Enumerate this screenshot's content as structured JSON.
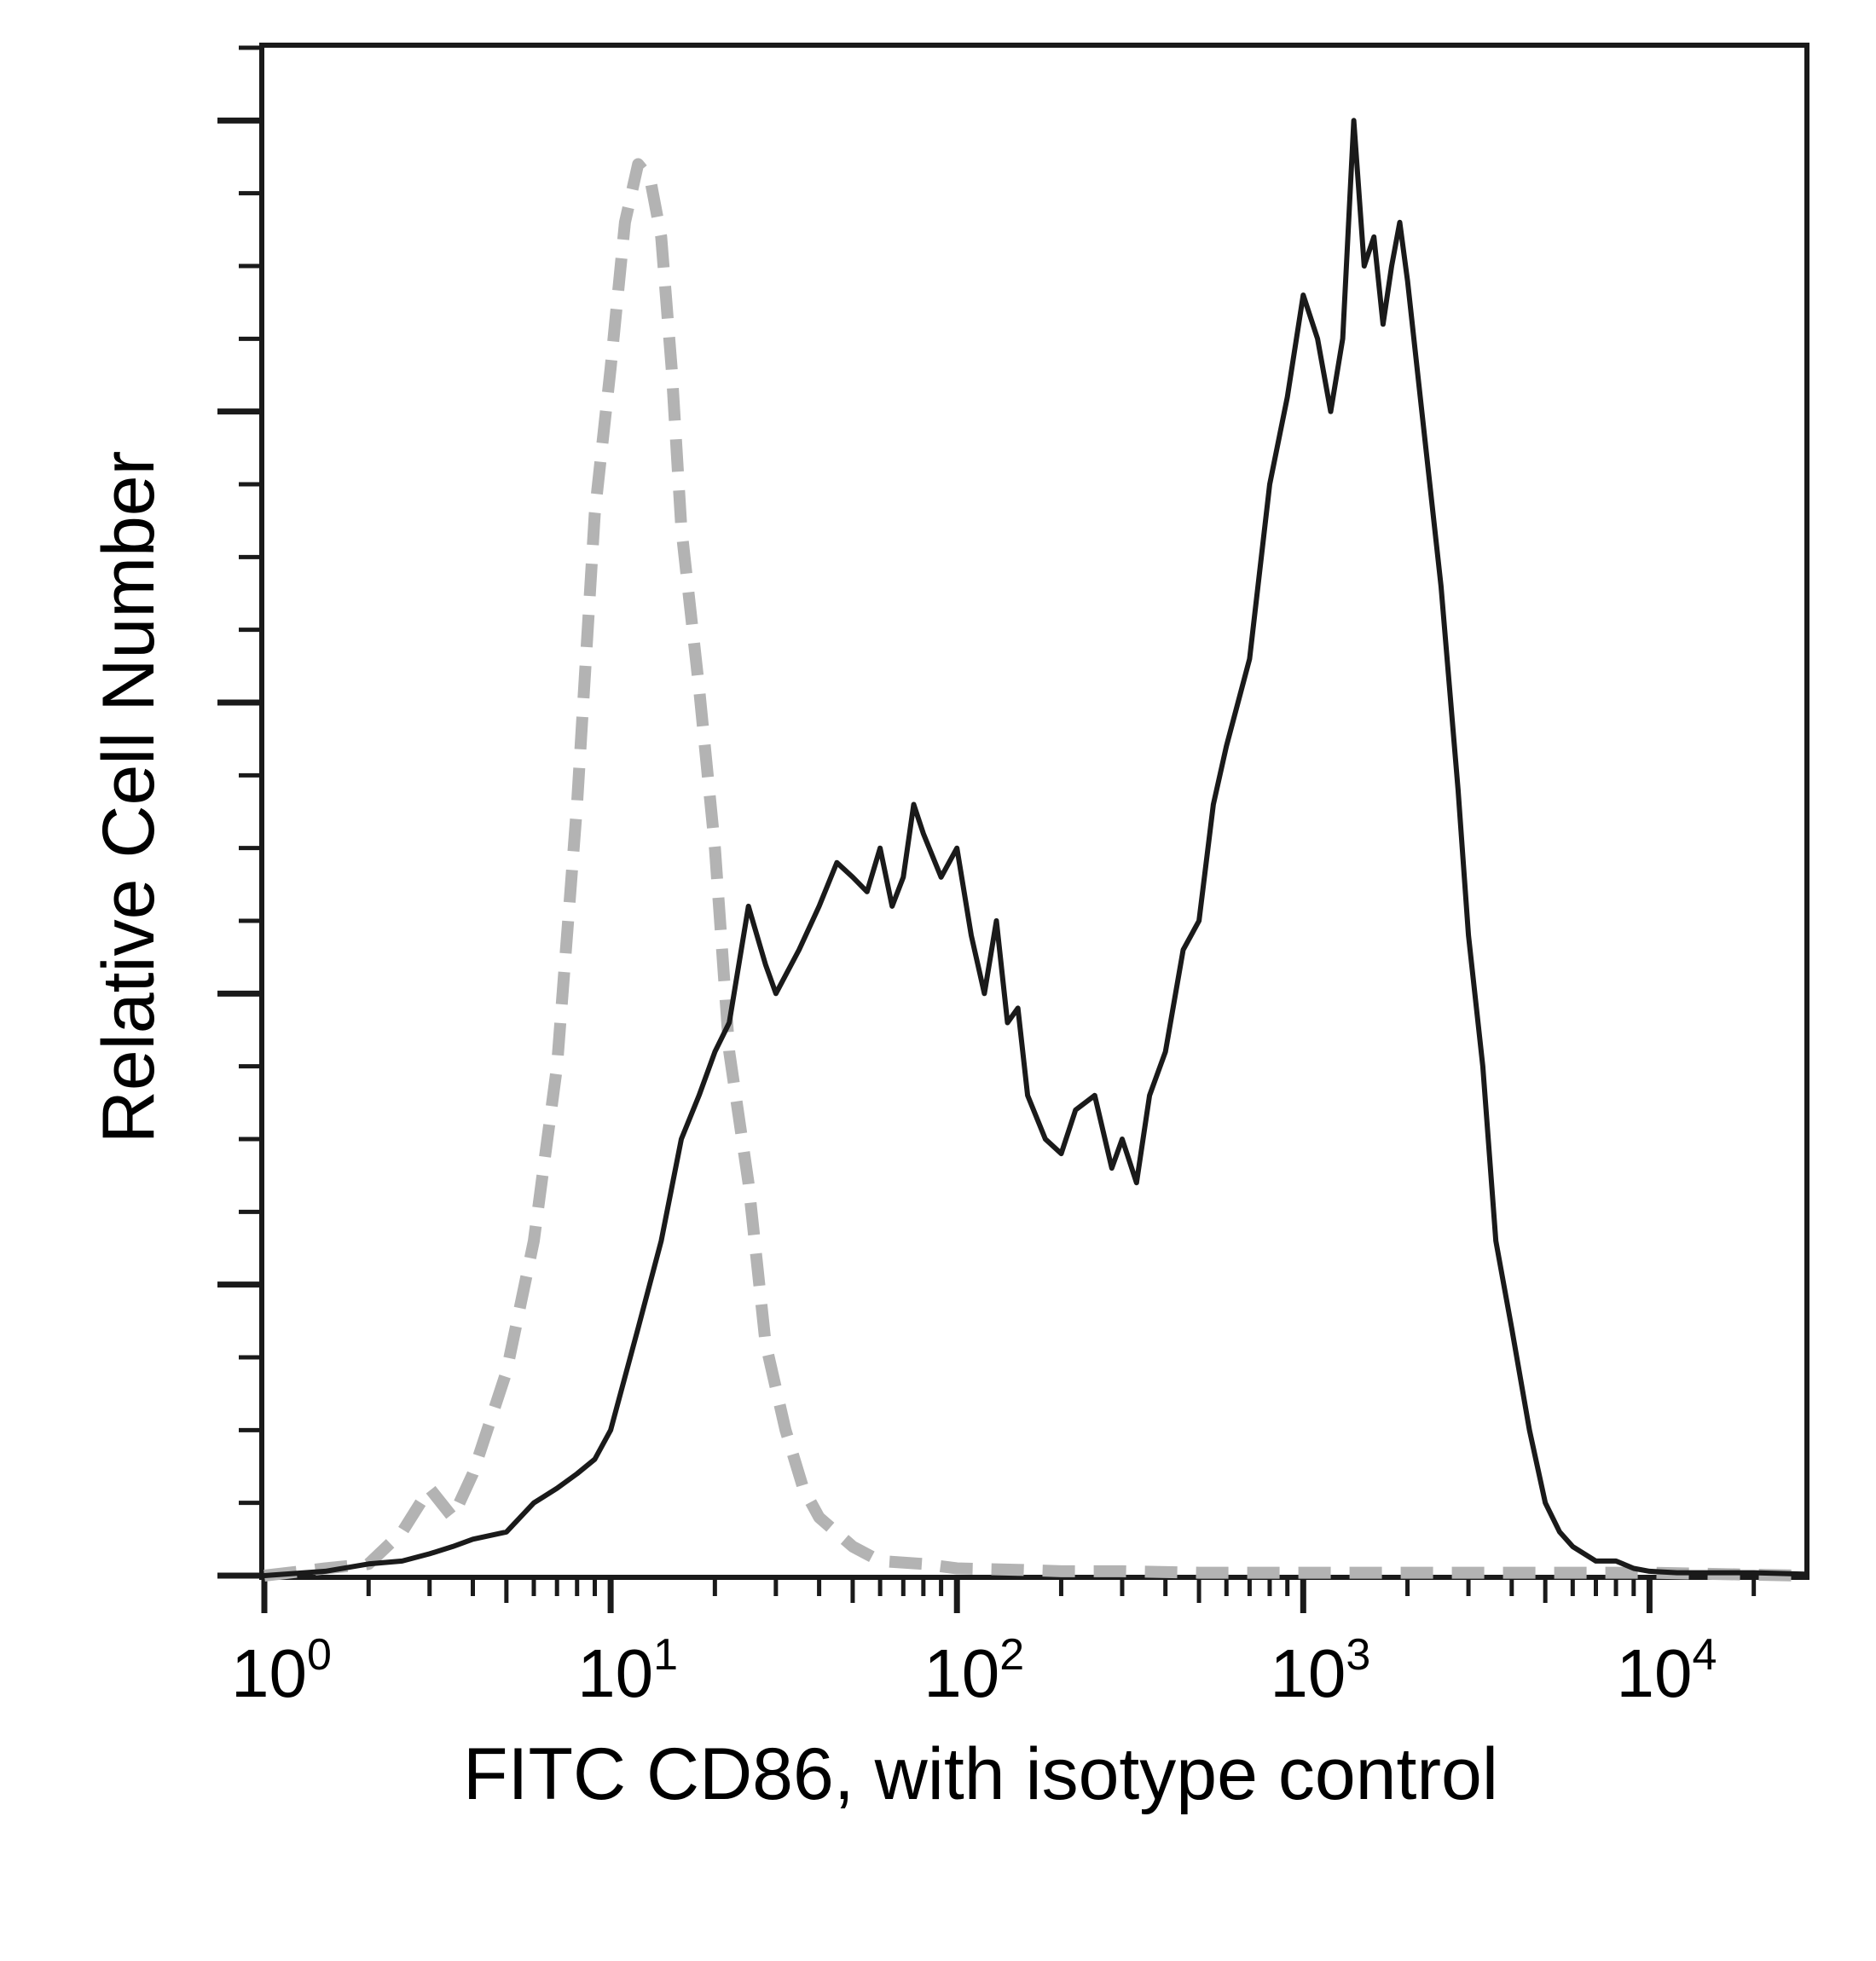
{
  "chart_data": {
    "type": "line",
    "title": "",
    "xlabel": "FITC CD86, with isotype control",
    "ylabel": "Relative Cell Number",
    "xscale": "log",
    "xlim": [
      1,
      28000
    ],
    "ylim": [
      0,
      105
    ],
    "grid": false,
    "legend": "none",
    "x_ticks": [
      {
        "base": "10",
        "exp": "0",
        "value": 1
      },
      {
        "base": "10",
        "exp": "1",
        "value": 10
      },
      {
        "base": "10",
        "exp": "2",
        "value": 100
      },
      {
        "base": "10",
        "exp": "3",
        "value": 1000
      },
      {
        "base": "10",
        "exp": "4",
        "value": 10000
      }
    ],
    "series": [
      {
        "name": "Isotype control",
        "style": "dashed",
        "color": "#b3b3b3",
        "x": [
          1,
          1.5,
          2,
          2.5,
          3,
          3.5,
          4,
          5,
          6,
          7,
          8,
          9,
          10,
          11,
          12,
          13,
          14,
          15,
          16,
          18,
          20,
          22,
          25,
          28,
          32,
          36,
          40,
          50,
          60,
          80,
          100,
          150,
          200,
          300,
          500,
          1000,
          2000,
          5000,
          10000,
          28000
        ],
        "y": [
          0,
          0.5,
          0.8,
          3,
          6,
          4,
          7,
          14,
          23,
          35,
          53,
          73,
          83,
          93,
          97,
          96,
          92,
          83,
          72,
          61,
          50,
          36,
          27,
          16,
          10,
          6,
          4,
          2,
          1,
          0.8,
          0.5,
          0.4,
          0.3,
          0.3,
          0.2,
          0.2,
          0.2,
          0.2,
          0.2,
          0
        ]
      },
      {
        "name": "FITC CD86",
        "style": "solid",
        "color": "#1a1a1a",
        "x": [
          1,
          1.5,
          2,
          2.5,
          3,
          3.5,
          4,
          5,
          6,
          7,
          8,
          9,
          10,
          12,
          14,
          16,
          18,
          20,
          22,
          25,
          28,
          30,
          35,
          40,
          45,
          50,
          55,
          60,
          65,
          70,
          75,
          80,
          90,
          100,
          110,
          120,
          130,
          140,
          150,
          160,
          180,
          200,
          220,
          250,
          280,
          300,
          330,
          360,
          400,
          450,
          500,
          550,
          600,
          700,
          800,
          900,
          1000,
          1100,
          1200,
          1300,
          1400,
          1500,
          1600,
          1700,
          1800,
          1900,
          2000,
          2200,
          2500,
          2800,
          3000,
          3300,
          3600,
          4000,
          4500,
          5000,
          5500,
          6000,
          7000,
          8000,
          9000,
          10000,
          12000,
          15000,
          20000,
          28000
        ],
        "y": [
          0,
          0.3,
          0.8,
          1,
          1.5,
          2,
          2.5,
          3,
          5,
          6,
          7,
          8,
          10,
          17,
          23,
          30,
          33,
          36,
          38,
          46,
          42,
          40,
          43,
          46,
          49,
          48,
          47,
          50,
          46,
          48,
          53,
          51,
          48,
          50,
          44,
          40,
          45,
          38,
          39,
          33,
          30,
          29,
          32,
          33,
          28,
          30,
          27,
          33,
          36,
          43,
          45,
          53,
          57,
          63,
          75,
          81,
          88,
          85,
          80,
          85,
          100,
          90,
          92,
          86,
          90,
          93,
          89,
          80,
          68,
          54,
          44,
          35,
          23,
          17,
          10,
          5,
          3,
          2,
          1,
          1,
          0.5,
          0.3,
          0.2,
          0.2,
          0.2,
          0.1
        ]
      }
    ]
  }
}
